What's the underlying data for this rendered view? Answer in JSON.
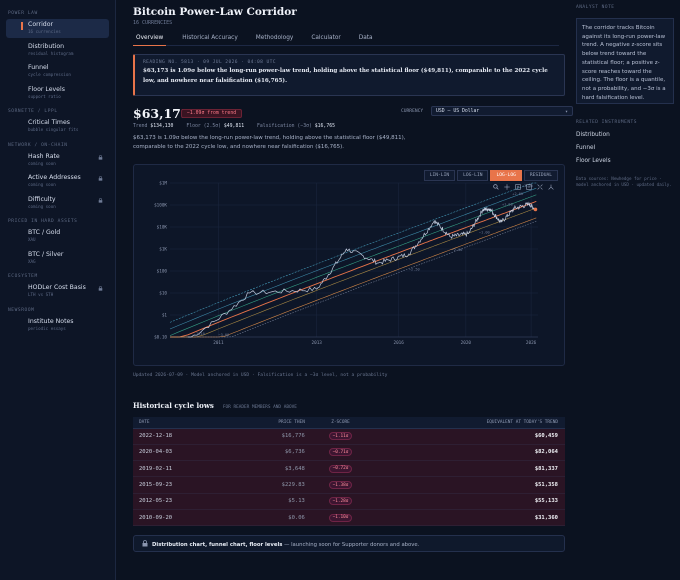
{
  "sidebar": {
    "sections": [
      {
        "title": "POWER LAW",
        "items": [
          {
            "label": "Corridor",
            "sub": "16 currencies",
            "active": true
          },
          {
            "label": "Distribution",
            "sub": "residual histogram"
          },
          {
            "label": "Funnel",
            "sub": "cycle compression"
          },
          {
            "label": "Floor Levels",
            "sub": "support ratio"
          }
        ]
      },
      {
        "title": "SORNETTE / LPPL",
        "items": [
          {
            "label": "Critical Times",
            "sub": "bubble singular fits"
          }
        ]
      },
      {
        "title": "NETWORK / ON-CHAIN",
        "items": [
          {
            "label": "Hash Rate",
            "sub": "coming soon",
            "locked": true
          },
          {
            "label": "Active Addresses",
            "sub": "coming soon",
            "locked": true
          },
          {
            "label": "Difficulty",
            "sub": "coming soon",
            "locked": true
          }
        ]
      },
      {
        "title": "PRICED IN HARD ASSETS",
        "items": [
          {
            "label": "BTC / Gold",
            "sub": "XAU"
          },
          {
            "label": "BTC / Silver",
            "sub": "XAG"
          }
        ]
      },
      {
        "title": "ECOSYSTEM",
        "items": [
          {
            "label": "HODLer Cost Basis",
            "sub": "LTH vs STH",
            "locked": true
          }
        ]
      },
      {
        "title": "NEWSROOM",
        "items": [
          {
            "label": "Institute Notes",
            "sub": "periodic essays"
          }
        ]
      }
    ]
  },
  "header": {
    "title": "Bitcoin Power-Law Corridor",
    "subtitle": "16 CURRENCIES",
    "tabs": [
      "Overview",
      "Historical Accuracy",
      "Methodology",
      "Calculator",
      "Data"
    ],
    "active_tab": "Overview"
  },
  "reading": {
    "number": "READING NO. 5813 · 09 JUL 2026 · 04:08 UTC",
    "text": "$63,173 is 1.09σ below the long-run power-law trend, holding above the statistical floor ($49,811), comparable to the 2022 cycle low, and nowhere near falsification ($16,765)."
  },
  "price": {
    "value": "$63,173",
    "badge": "−1.09σ from trend",
    "currency_label": "CURRENCY",
    "currency_value": "USD — US Dollar",
    "metrics": [
      {
        "label": "Trend",
        "value": "$134,130"
      },
      {
        "label": "Floor (2.5σ)",
        "value": "$49,811"
      },
      {
        "label": "Falsification (−3σ)",
        "value": "$16,765"
      }
    ],
    "description": "$63,173 is 1.09σ below the long-run power-law trend, holding above the statistical floor ($49,811), comparable to the 2022 cycle low, and nowhere near falsification ($16,765)."
  },
  "chart": {
    "scale_buttons": [
      "LIN-LIN",
      "LOG-LIN",
      "LOG-LOG",
      "RESIDUAL"
    ],
    "active_scale": "LOG-LOG",
    "tool_icons": [
      "zoom-in-icon",
      "pan-icon",
      "zoom-box-icon",
      "zoom-out-icon",
      "reset-icon",
      "autoscale-icon"
    ],
    "footnote": "Updated 2026-07-09 · Model anchored in USD · Falsification is a −3σ level, not a probability"
  },
  "chart_data": {
    "type": "line",
    "title": "",
    "xlabel": "",
    "ylabel": "",
    "x_scale": "log",
    "y_scale": "log",
    "x_ticks": [
      "2011",
      "2013",
      "2016",
      "2020",
      "2026"
    ],
    "y_ticks": [
      "$0.10",
      "$1",
      "$10",
      "$100",
      "$1K",
      "$10K",
      "$100K",
      "$1M"
    ],
    "ylim": [
      0.1,
      1000000
    ],
    "grid": true,
    "annotations": [
      "2010",
      "−3.00",
      "−2.50",
      "−2.00",
      "−1.00",
      "+1.00",
      "+2.00",
      "+3.00"
    ],
    "series": [
      {
        "values_year": [
          2010.6,
          2011.5,
          2013.0,
          2013.9,
          2015.1,
          2016.5,
          2017.9,
          2018.9,
          2020.2,
          2021.3,
          2021.9,
          2022.9,
          2024.2,
          2025.8,
          2026.5
        ],
        "values_usd": [
          0.08,
          10,
          15,
          1000,
          230,
          600,
          19000,
          3600,
          5000,
          60000,
          68000,
          16000,
          70000,
          110000,
          63173
        ]
      }
    ],
    "colors": {
      "price": "#c9d3e6",
      "trend": "#e8744a",
      "floor": "#e8944a",
      "upper": "#4aa8c8",
      "band": "#8a95ae"
    }
  },
  "table": {
    "title": "Historical cycle lows",
    "subtitle": "FOR READER MEMBERS AND ABOVE",
    "columns": [
      "DATE",
      "PRICE THEN",
      "Z-SCORE",
      "EQUIVALENT AT TODAY'S TREND"
    ],
    "rows": [
      {
        "date": "2022-12-18",
        "price": "$16,776",
        "z": "−1.11σ",
        "equiv": "$60,459"
      },
      {
        "date": "2020-04-03",
        "price": "$6,736",
        "z": "−0.71σ",
        "equiv": "$82,064"
      },
      {
        "date": "2019-02-11",
        "price": "$3,648",
        "z": "−0.72σ",
        "equiv": "$81,337"
      },
      {
        "date": "2015-09-23",
        "price": "$229.83",
        "z": "−1.38σ",
        "equiv": "$51,358"
      },
      {
        "date": "2012-05-23",
        "price": "$5.13",
        "z": "−1.28σ",
        "equiv": "$55,133"
      },
      {
        "date": "2010-09-20",
        "price": "$0.06",
        "z": "−1.10σ",
        "equiv": "$31,360"
      }
    ]
  },
  "launch_note": {
    "bold": "Distribution chart, funnel chart, floor levels",
    "rest": " — launching soon for Supporter donors and above."
  },
  "right_panel": {
    "analyst_head": "ANALYST NOTE",
    "analyst_text": "The corridor tracks Bitcoin against its long-run power-law trend. A negative z-score sits below trend toward the statistical floor; a positive z-score reaches toward the ceiling. The floor is a quantile, not a probability, and −3σ is a hard falsification level.",
    "related_head": "RELATED INSTRUMENTS",
    "related": [
      "Distribution",
      "Funnel",
      "Floor Levels"
    ],
    "data_sources": "Data sources: Newhedge for price · model anchored in USD · updated daily."
  }
}
